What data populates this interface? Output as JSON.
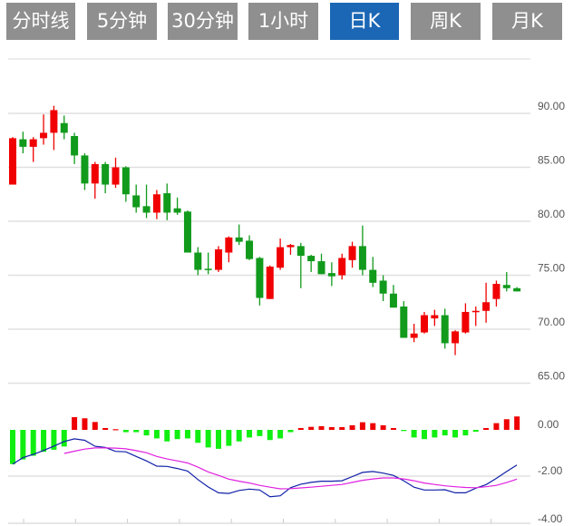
{
  "tabs": [
    {
      "label": "分时线",
      "active": false
    },
    {
      "label": "5分钟",
      "active": false
    },
    {
      "label": "30分钟",
      "active": false
    },
    {
      "label": "1小时",
      "active": false
    },
    {
      "label": "日K",
      "active": true
    },
    {
      "label": "周K",
      "active": false
    },
    {
      "label": "月K",
      "active": false
    }
  ],
  "colors": {
    "up": "#f00000",
    "down": "#119a1b",
    "hist_up": "#ee0000",
    "hist_down": "#11ee11",
    "dif": "#1020a8",
    "dea": "#e020e0",
    "active_tab": "#1b67b5",
    "tab": "#8f8f8f"
  },
  "chart_data": [
    {
      "type": "candlestick",
      "ylim": [
        65,
        90
      ],
      "yticks": [
        90,
        85,
        80,
        75,
        70,
        65
      ],
      "ytick_labels": [
        "90.00",
        "85.00",
        "80.00",
        "75.00",
        "70.00",
        "65.00"
      ],
      "grid": true,
      "ohlc": [
        [
          83.4,
          87.8,
          83.4,
          87.7
        ],
        [
          87.6,
          88.3,
          86.3,
          86.9
        ],
        [
          86.9,
          87.8,
          85.5,
          87.6
        ],
        [
          87.7,
          89.9,
          87.1,
          88.2
        ],
        [
          88.2,
          90.7,
          86.6,
          90.3
        ],
        [
          89.1,
          89.8,
          87.6,
          88.2
        ],
        [
          87.9,
          88.2,
          85.3,
          86.1
        ],
        [
          86.1,
          86.3,
          82.9,
          83.5
        ],
        [
          83.5,
          85.5,
          82.1,
          85.3
        ],
        [
          85.3,
          85.5,
          82.6,
          83.4
        ],
        [
          83.4,
          85.9,
          83.1,
          85.0
        ],
        [
          85.0,
          85.1,
          81.8,
          82.5
        ],
        [
          82.4,
          83.4,
          80.8,
          81.3
        ],
        [
          81.4,
          83.4,
          80.3,
          80.8
        ],
        [
          80.8,
          82.9,
          80.2,
          82.5
        ],
        [
          82.6,
          83.5,
          80.1,
          80.8
        ],
        [
          81.2,
          82.2,
          80.6,
          80.8
        ],
        [
          80.9,
          81.0,
          77.1,
          77.1
        ],
        [
          77.1,
          77.6,
          75.0,
          75.5
        ],
        [
          75.6,
          77.1,
          75.1,
          75.5
        ],
        [
          75.5,
          77.7,
          75.3,
          77.4
        ],
        [
          77.1,
          78.6,
          76.2,
          78.5
        ],
        [
          78.5,
          79.7,
          77.8,
          78.1
        ],
        [
          78.2,
          78.7,
          76.4,
          76.5
        ],
        [
          76.6,
          76.7,
          72.2,
          72.9
        ],
        [
          72.8,
          75.9,
          72.8,
          75.8
        ],
        [
          75.7,
          78.4,
          75.5,
          77.6
        ],
        [
          77.6,
          77.9,
          76.9,
          77.8
        ],
        [
          77.7,
          78.0,
          73.8,
          76.8
        ],
        [
          76.8,
          76.9,
          75.3,
          76.3
        ],
        [
          76.3,
          77.0,
          75.1,
          75.1
        ],
        [
          75.2,
          76.2,
          74.0,
          74.9
        ],
        [
          75.0,
          77.0,
          74.6,
          76.6
        ],
        [
          76.4,
          78.1,
          75.7,
          77.7
        ],
        [
          77.7,
          79.6,
          75.0,
          75.5
        ],
        [
          75.5,
          76.7,
          73.9,
          74.3
        ],
        [
          74.5,
          75.0,
          72.6,
          73.3
        ],
        [
          73.3,
          74.1,
          72.0,
          72.0
        ],
        [
          72.1,
          72.6,
          69.2,
          69.2
        ],
        [
          69.2,
          70.5,
          68.8,
          69.6
        ],
        [
          69.7,
          71.6,
          69.6,
          71.3
        ],
        [
          71.0,
          71.8,
          70.3,
          71.3
        ],
        [
          71.3,
          71.9,
          68.2,
          68.7
        ],
        [
          68.7,
          69.9,
          67.6,
          69.8
        ],
        [
          69.7,
          72.4,
          69.6,
          71.6
        ],
        [
          71.6,
          72.1,
          70.3,
          71.7
        ],
        [
          71.7,
          74.3,
          70.6,
          72.5
        ],
        [
          72.8,
          74.5,
          72.1,
          74.2
        ],
        [
          74.1,
          75.3,
          73.5,
          73.8
        ],
        [
          73.8,
          73.9,
          73.5,
          73.5
        ]
      ]
    },
    {
      "type": "macd",
      "ylim": [
        -4,
        0.8
      ],
      "yticks": [
        0,
        -2,
        -4
      ],
      "ytick_labels": [
        "0.00",
        "-2.00",
        "-4.00"
      ],
      "histogram": [
        -1.48,
        -1.28,
        -1.12,
        -0.95,
        -0.86,
        -0.72,
        0.55,
        0.5,
        0.34,
        0.08,
        0.03,
        -0.1,
        -0.1,
        -0.24,
        -0.37,
        -0.5,
        -0.4,
        -0.37,
        -0.56,
        -0.76,
        -0.82,
        -0.69,
        -0.5,
        -0.33,
        -0.27,
        -0.44,
        -0.37,
        -0.1,
        0.08,
        0.13,
        0.16,
        0.12,
        0.12,
        0.2,
        0.33,
        0.29,
        0.2,
        0.08,
        -0.05,
        -0.33,
        -0.4,
        -0.33,
        -0.24,
        -0.33,
        -0.24,
        -0.08,
        0.08,
        0.29,
        0.46,
        0.58
      ],
      "dif": [
        -1.48,
        -1.2,
        -1.06,
        -0.89,
        -0.7,
        -0.5,
        -0.39,
        -0.45,
        -0.71,
        -0.76,
        -0.93,
        -0.95,
        -1.15,
        -1.34,
        -1.57,
        -1.58,
        -1.67,
        -1.78,
        -2.15,
        -2.47,
        -2.72,
        -2.75,
        -2.62,
        -2.56,
        -2.6,
        -2.89,
        -2.85,
        -2.5,
        -2.35,
        -2.27,
        -2.22,
        -2.22,
        -2.2,
        -2.02,
        -1.84,
        -1.8,
        -1.87,
        -1.97,
        -2.2,
        -2.48,
        -2.6,
        -2.6,
        -2.59,
        -2.72,
        -2.72,
        -2.52,
        -2.37,
        -2.1,
        -1.8,
        -1.52
      ],
      "dea": [
        null,
        null,
        null,
        null,
        null,
        -1.02,
        -0.92,
        -0.83,
        -0.78,
        -0.78,
        -0.79,
        -0.82,
        -0.9,
        -0.99,
        -1.15,
        -1.26,
        -1.34,
        -1.43,
        -1.61,
        -1.82,
        -1.97,
        -2.13,
        -2.22,
        -2.3,
        -2.4,
        -2.48,
        -2.55,
        -2.54,
        -2.51,
        -2.48,
        -2.44,
        -2.4,
        -2.36,
        -2.27,
        -2.18,
        -2.12,
        -2.08,
        -2.08,
        -2.12,
        -2.2,
        -2.3,
        -2.36,
        -2.42,
        -2.46,
        -2.49,
        -2.5,
        -2.46,
        -2.4,
        -2.28,
        -2.13
      ]
    }
  ]
}
